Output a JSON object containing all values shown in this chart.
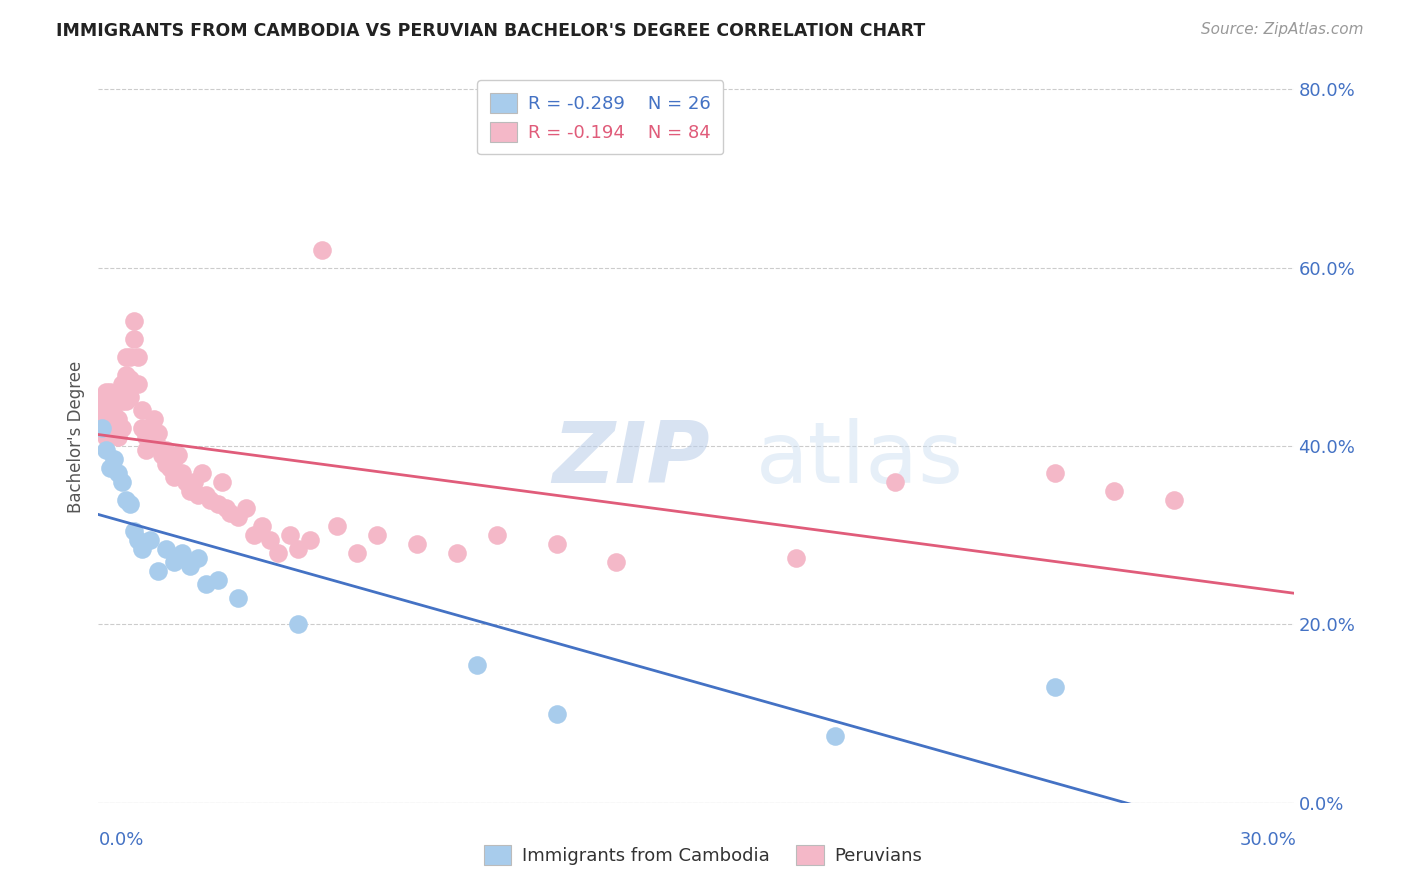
{
  "title": "IMMIGRANTS FROM CAMBODIA VS PERUVIAN BACHELOR'S DEGREE CORRELATION CHART",
  "source": "Source: ZipAtlas.com",
  "ylabel": "Bachelor's Degree",
  "right_yticks": [
    0.0,
    0.2,
    0.4,
    0.6,
    0.8
  ],
  "right_yticklabels": [
    "0.0%",
    "20.0%",
    "40.0%",
    "60.0%",
    "80.0%"
  ],
  "xlim": [
    0.0,
    0.3
  ],
  "ylim": [
    0.0,
    0.82
  ],
  "legend_blue_R": "-0.289",
  "legend_blue_N": "26",
  "legend_pink_R": "-0.194",
  "legend_pink_N": "84",
  "blue_color": "#A8CCEC",
  "pink_color": "#F4B8C8",
  "line_blue": "#4472C4",
  "line_pink": "#E05C7A",
  "grid_color": "#cccccc",
  "watermark_color": "#c8d8f0",
  "blue_scatter_x": [
    0.001,
    0.002,
    0.003,
    0.004,
    0.005,
    0.006,
    0.007,
    0.008,
    0.009,
    0.01,
    0.011,
    0.013,
    0.015,
    0.017,
    0.019,
    0.021,
    0.023,
    0.025,
    0.027,
    0.03,
    0.035,
    0.05,
    0.095,
    0.115,
    0.185,
    0.24
  ],
  "blue_scatter_y": [
    0.42,
    0.395,
    0.375,
    0.385,
    0.37,
    0.36,
    0.34,
    0.335,
    0.305,
    0.295,
    0.285,
    0.295,
    0.26,
    0.285,
    0.27,
    0.28,
    0.265,
    0.275,
    0.245,
    0.25,
    0.23,
    0.2,
    0.155,
    0.1,
    0.075,
    0.13
  ],
  "pink_scatter_x": [
    0.001,
    0.001,
    0.001,
    0.002,
    0.002,
    0.002,
    0.002,
    0.003,
    0.003,
    0.003,
    0.003,
    0.004,
    0.004,
    0.004,
    0.005,
    0.005,
    0.005,
    0.005,
    0.006,
    0.006,
    0.006,
    0.007,
    0.007,
    0.007,
    0.008,
    0.008,
    0.008,
    0.009,
    0.009,
    0.01,
    0.01,
    0.011,
    0.011,
    0.012,
    0.012,
    0.013,
    0.013,
    0.014,
    0.014,
    0.015,
    0.015,
    0.016,
    0.017,
    0.017,
    0.018,
    0.018,
    0.019,
    0.019,
    0.02,
    0.021,
    0.022,
    0.023,
    0.024,
    0.025,
    0.026,
    0.027,
    0.028,
    0.03,
    0.031,
    0.032,
    0.033,
    0.035,
    0.037,
    0.039,
    0.041,
    0.043,
    0.045,
    0.048,
    0.05,
    0.053,
    0.056,
    0.06,
    0.065,
    0.07,
    0.08,
    0.09,
    0.1,
    0.115,
    0.13,
    0.175,
    0.2,
    0.24,
    0.255,
    0.27
  ],
  "pink_scatter_y": [
    0.45,
    0.44,
    0.43,
    0.46,
    0.45,
    0.44,
    0.41,
    0.46,
    0.445,
    0.43,
    0.415,
    0.455,
    0.435,
    0.415,
    0.46,
    0.45,
    0.43,
    0.41,
    0.47,
    0.45,
    0.42,
    0.5,
    0.48,
    0.45,
    0.5,
    0.475,
    0.455,
    0.54,
    0.52,
    0.5,
    0.47,
    0.44,
    0.42,
    0.41,
    0.395,
    0.42,
    0.405,
    0.43,
    0.41,
    0.415,
    0.4,
    0.39,
    0.395,
    0.38,
    0.39,
    0.375,
    0.385,
    0.365,
    0.39,
    0.37,
    0.36,
    0.35,
    0.36,
    0.345,
    0.37,
    0.345,
    0.34,
    0.335,
    0.36,
    0.33,
    0.325,
    0.32,
    0.33,
    0.3,
    0.31,
    0.295,
    0.28,
    0.3,
    0.285,
    0.295,
    0.62,
    0.31,
    0.28,
    0.3,
    0.29,
    0.28,
    0.3,
    0.29,
    0.27,
    0.275,
    0.36,
    0.37,
    0.35,
    0.34
  ]
}
